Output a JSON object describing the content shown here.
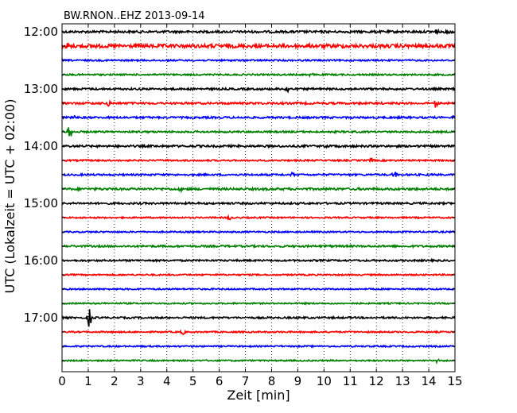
{
  "chart_data": {
    "type": "line",
    "title": "BW.RNON..EHZ 2013-09-14",
    "xlabel": "Zeit  [min]",
    "ylabel": "UTC (Lokalzeit = UTC + 02:00)",
    "xlim": [
      0,
      15
    ],
    "x_ticks": [
      "0",
      "1",
      "2",
      "3",
      "4",
      "5",
      "6",
      "7",
      "8",
      "9",
      "10",
      "11",
      "12",
      "13",
      "14",
      "15"
    ],
    "y_tick_labels": [
      "12:00",
      "13:00",
      "14:00",
      "15:00",
      "16:00",
      "17:00"
    ],
    "trace_interval_min": 15,
    "grid": "vertical dotted",
    "series": [
      {
        "start": "12:00",
        "color": "#000000",
        "noise": 1.4,
        "events": [
          {
            "t": 14.3,
            "amp": 3.0
          },
          {
            "t": 14.8,
            "amp": 3.0
          }
        ]
      },
      {
        "start": "12:15",
        "color": "#ff0000",
        "noise": 2.2,
        "events": [
          {
            "t": 0.2,
            "amp": 4.0
          },
          {
            "t": 4.5,
            "amp": 3.0
          },
          {
            "t": 9.4,
            "amp": 3.0
          }
        ]
      },
      {
        "start": "12:30",
        "color": "#0000ff",
        "noise": 1.0,
        "events": []
      },
      {
        "start": "12:45",
        "color": "#008000",
        "noise": 1.0,
        "events": [
          {
            "t": 9.5,
            "amp": 3.5
          }
        ]
      },
      {
        "start": "13:00",
        "color": "#000000",
        "noise": 1.2,
        "events": [
          {
            "t": 8.6,
            "amp": 6.0
          }
        ]
      },
      {
        "start": "13:15",
        "color": "#ff0000",
        "noise": 1.3,
        "events": [
          {
            "t": 1.75,
            "amp": 6.0
          },
          {
            "t": 14.25,
            "amp": 6.0
          }
        ]
      },
      {
        "start": "13:30",
        "color": "#0000ff",
        "noise": 1.2,
        "events": [
          {
            "t": 0.5,
            "amp": 3.0
          },
          {
            "t": 14.9,
            "amp": 3.0
          }
        ]
      },
      {
        "start": "13:45",
        "color": "#008000",
        "noise": 1.1,
        "events": [
          {
            "t": 0.3,
            "amp": 11.0
          }
        ]
      },
      {
        "start": "14:00",
        "color": "#000000",
        "noise": 1.3,
        "events": [
          {
            "t": 10.1,
            "amp": 3.0
          }
        ]
      },
      {
        "start": "14:15",
        "color": "#ff0000",
        "noise": 1.0,
        "events": [
          {
            "t": 11.8,
            "amp": 5.0
          }
        ]
      },
      {
        "start": "14:30",
        "color": "#0000ff",
        "noise": 1.1,
        "events": [
          {
            "t": 8.8,
            "amp": 3.0
          },
          {
            "t": 12.7,
            "amp": 6.0
          }
        ]
      },
      {
        "start": "14:45",
        "color": "#008000",
        "noise": 1.4,
        "events": [
          {
            "t": 4.5,
            "amp": 2.5
          }
        ]
      },
      {
        "start": "15:00",
        "color": "#000000",
        "noise": 1.2,
        "events": []
      },
      {
        "start": "15:15",
        "color": "#ff0000",
        "noise": 0.9,
        "events": [
          {
            "t": 6.4,
            "amp": 3.5
          }
        ]
      },
      {
        "start": "15:30",
        "color": "#0000ff",
        "noise": 0.9,
        "events": []
      },
      {
        "start": "15:45",
        "color": "#008000",
        "noise": 1.2,
        "events": [
          {
            "t": 10.1,
            "amp": 3.0
          }
        ]
      },
      {
        "start": "16:00",
        "color": "#000000",
        "noise": 1.1,
        "events": []
      },
      {
        "start": "16:15",
        "color": "#ff0000",
        "noise": 0.9,
        "events": []
      },
      {
        "start": "16:30",
        "color": "#0000ff",
        "noise": 0.9,
        "events": []
      },
      {
        "start": "16:45",
        "color": "#008000",
        "noise": 0.9,
        "events": []
      },
      {
        "start": "17:00",
        "color": "#000000",
        "noise": 1.1,
        "events": [
          {
            "t": 1.05,
            "amp": 14.0
          }
        ]
      },
      {
        "start": "17:15",
        "color": "#ff0000",
        "noise": 0.9,
        "events": [
          {
            "t": 4.6,
            "amp": 3.5
          }
        ]
      },
      {
        "start": "17:30",
        "color": "#0000ff",
        "noise": 0.9,
        "events": []
      },
      {
        "start": "17:45",
        "color": "#008000",
        "noise": 0.9,
        "events": [
          {
            "t": 14.3,
            "amp": 3.0
          }
        ]
      }
    ]
  }
}
